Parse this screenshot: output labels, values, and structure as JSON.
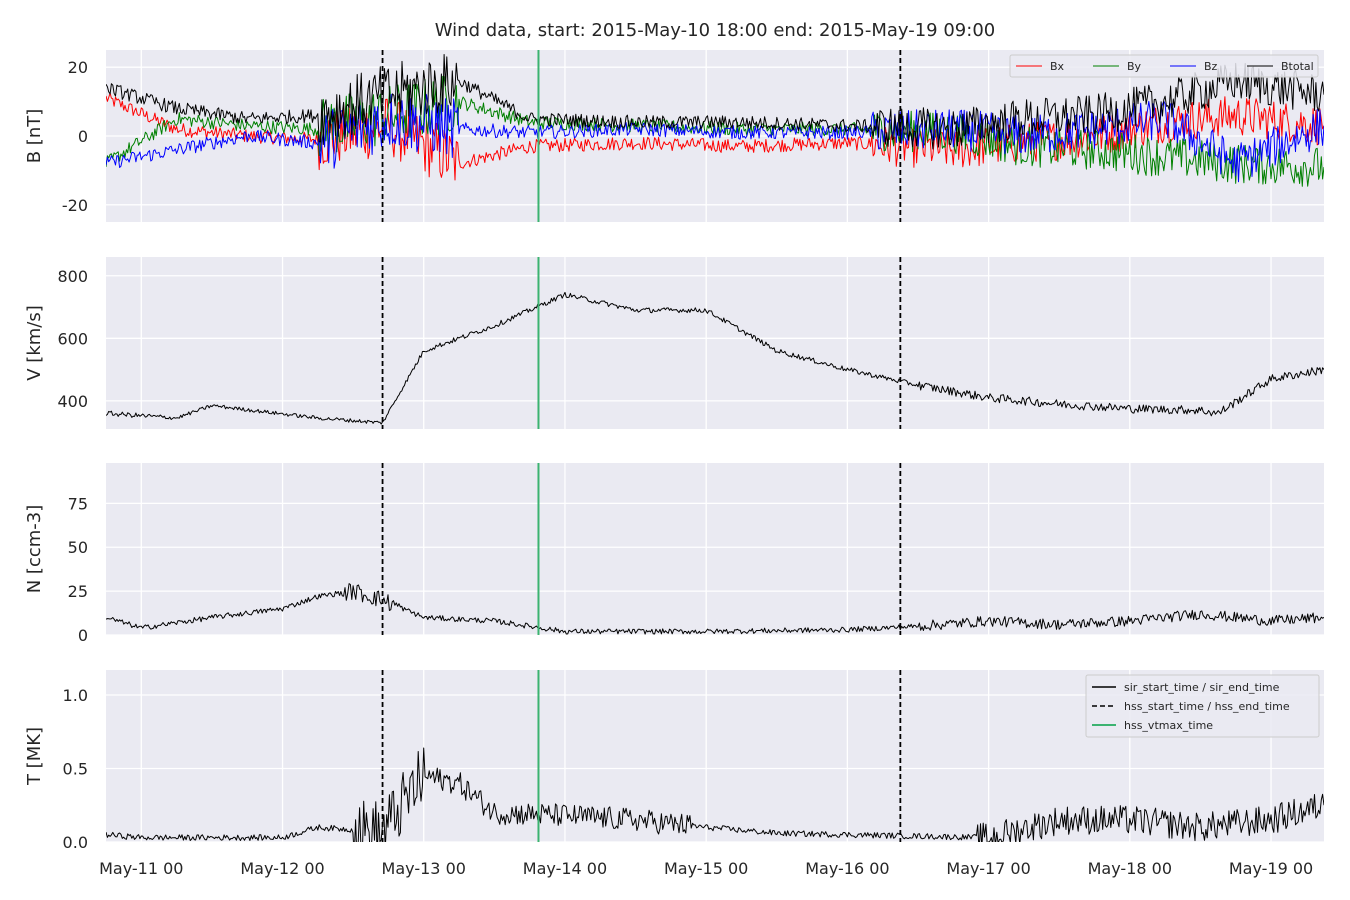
{
  "figure": {
    "title": "Wind data, start: 2015-May-10 18:00  end: 2015-May-19 09:00"
  },
  "chart_data": [
    {
      "type": "line",
      "panel": "B",
      "ylabel": "B [nT]",
      "ylim": [
        -25,
        25
      ],
      "yticks": [
        20,
        0,
        -20
      ],
      "legend": {
        "placement": "top-right",
        "columns": 4
      },
      "series": [
        {
          "name": "Bx",
          "color": "#ff0000",
          "x": [
            "2015-05-10 18:00",
            "2015-05-11 06:00",
            "2015-05-11 18:00",
            "2015-05-12 06:00",
            "2015-05-12 18:00",
            "2015-05-13 06:00",
            "2015-05-13 18:00",
            "2015-05-14 12:00",
            "2015-05-15 06:00",
            "2015-05-16 00:00",
            "2015-05-16 18:00",
            "2015-05-17 06:00",
            "2015-05-17 18:00",
            "2015-05-18 06:00",
            "2015-05-18 18:00",
            "2015-05-19 09:00"
          ],
          "y": [
            11,
            2,
            0,
            -1,
            3,
            -8,
            -3,
            -2,
            -3,
            -2,
            -4,
            -2,
            0,
            4,
            6,
            3
          ]
        },
        {
          "name": "By",
          "color": "#008000",
          "x": [
            "2015-05-10 18:00",
            "2015-05-11 06:00",
            "2015-05-11 18:00",
            "2015-05-12 06:00",
            "2015-05-12 18:00",
            "2015-05-13 06:00",
            "2015-05-13 18:00",
            "2015-05-14 12:00",
            "2015-05-15 06:00",
            "2015-05-16 00:00",
            "2015-05-16 18:00",
            "2015-05-17 06:00",
            "2015-05-17 18:00",
            "2015-05-18 06:00",
            "2015-05-18 18:00",
            "2015-05-19 09:00"
          ],
          "y": [
            -8,
            5,
            3,
            2,
            6,
            10,
            4,
            3,
            2,
            2,
            1,
            -3,
            -4,
            -6,
            -8,
            -9
          ]
        },
        {
          "name": "Bz",
          "color": "#0000ff",
          "x": [
            "2015-05-10 18:00",
            "2015-05-11 06:00",
            "2015-05-11 18:00",
            "2015-05-12 06:00",
            "2015-05-12 18:00",
            "2015-05-13 06:00",
            "2015-05-13 18:00",
            "2015-05-14 12:00",
            "2015-05-15 06:00",
            "2015-05-16 00:00",
            "2015-05-16 18:00",
            "2015-05-17 06:00",
            "2015-05-17 18:00",
            "2015-05-18 06:00",
            "2015-05-18 18:00",
            "2015-05-19 09:00"
          ],
          "y": [
            -8,
            -4,
            0,
            -2,
            5,
            2,
            1,
            2,
            1,
            1,
            2,
            0,
            2,
            5,
            -8,
            3
          ]
        },
        {
          "name": "Btotal",
          "color": "#000000",
          "x": [
            "2015-05-10 18:00",
            "2015-05-11 06:00",
            "2015-05-11 18:00",
            "2015-05-12 06:00",
            "2015-05-12 18:00",
            "2015-05-13 06:00",
            "2015-05-13 18:00",
            "2015-05-14 12:00",
            "2015-05-15 06:00",
            "2015-05-16 00:00",
            "2015-05-16 18:00",
            "2015-05-17 06:00",
            "2015-05-17 18:00",
            "2015-05-18 06:00",
            "2015-05-18 18:00",
            "2015-05-19 09:00"
          ],
          "y": [
            14,
            8,
            5,
            6,
            12,
            16,
            5,
            4,
            4,
            3,
            2,
            5,
            6,
            10,
            16,
            12
          ]
        }
      ],
      "events": [
        {
          "name": "hss_start_time",
          "x": "2015-05-12 17:00",
          "style": "dashed",
          "color": "#000000"
        },
        {
          "name": "hss_vtmax_time",
          "x": "2015-05-13 19:30",
          "style": "solid",
          "color": "#3cb371"
        },
        {
          "name": "hss_end_time",
          "x": "2015-05-16 09:00",
          "style": "dashed",
          "color": "#000000"
        }
      ]
    },
    {
      "type": "line",
      "panel": "V",
      "ylabel": "V [km/s]",
      "ylim": [
        310,
        860
      ],
      "yticks": [
        800,
        600,
        400
      ],
      "series": [
        {
          "color": "#000000",
          "x": [
            "2015-05-10 18:00",
            "2015-05-11 06:00",
            "2015-05-11 12:00",
            "2015-05-12 06:00",
            "2015-05-12 17:00",
            "2015-05-13 00:00",
            "2015-05-13 12:00",
            "2015-05-14 00:00",
            "2015-05-14 12:00",
            "2015-05-15 00:00",
            "2015-05-15 12:00",
            "2015-05-16 00:00",
            "2015-05-16 12:00",
            "2015-05-17 00:00",
            "2015-05-17 12:00",
            "2015-05-18 00:00",
            "2015-05-18 12:00",
            "2015-05-18 15:00",
            "2015-05-19 00:00",
            "2015-05-19 09:00"
          ],
          "y": [
            360,
            345,
            385,
            345,
            330,
            560,
            640,
            740,
            690,
            690,
            560,
            500,
            450,
            410,
            390,
            375,
            370,
            360,
            470,
            500
          ]
        }
      ],
      "events": [
        {
          "name": "hss_start_time",
          "x": "2015-05-12 17:00",
          "style": "dashed",
          "color": "#000000"
        },
        {
          "name": "hss_vtmax_time",
          "x": "2015-05-13 19:30",
          "style": "solid",
          "color": "#3cb371"
        },
        {
          "name": "hss_end_time",
          "x": "2015-05-16 09:00",
          "style": "dashed",
          "color": "#000000"
        }
      ]
    },
    {
      "type": "line",
      "panel": "N",
      "ylabel": "N [ccm-3]",
      "ylim": [
        0,
        98
      ],
      "yticks": [
        75,
        50,
        25,
        0
      ],
      "series": [
        {
          "color": "#000000",
          "x": [
            "2015-05-10 18:00",
            "2015-05-11 00:00",
            "2015-05-11 12:00",
            "2015-05-12 00:00",
            "2015-05-12 06:00",
            "2015-05-12 12:00",
            "2015-05-12 17:00",
            "2015-05-13 00:00",
            "2015-05-13 12:00",
            "2015-05-14 00:00",
            "2015-05-15 00:00",
            "2015-05-16 00:00",
            "2015-05-16 12:00",
            "2015-05-17 00:00",
            "2015-05-17 12:00",
            "2015-05-18 00:00",
            "2015-05-18 12:00",
            "2015-05-19 00:00",
            "2015-05-19 09:00"
          ],
          "y": [
            10,
            4,
            10,
            15,
            22,
            25,
            20,
            10,
            8,
            2,
            2,
            3,
            5,
            8,
            6,
            8,
            12,
            8,
            10
          ]
        }
      ],
      "events": [
        {
          "name": "hss_start_time",
          "x": "2015-05-12 17:00",
          "style": "dashed",
          "color": "#000000"
        },
        {
          "name": "hss_vtmax_time",
          "x": "2015-05-13 19:30",
          "style": "solid",
          "color": "#3cb371"
        },
        {
          "name": "hss_end_time",
          "x": "2015-05-16 09:00",
          "style": "dashed",
          "color": "#000000"
        }
      ]
    },
    {
      "type": "line",
      "panel": "T",
      "ylabel": "T [MK]",
      "ylim": [
        0,
        1.17
      ],
      "yticks": [
        "1.0",
        "0.5",
        "0.0"
      ],
      "legend": {
        "placement": "top-right",
        "entries": [
          {
            "label": "sir_start_time / sir_end_time",
            "style": "solid",
            "color": "#000000"
          },
          {
            "label": "hss_start_time / hss_end_time",
            "style": "dashed",
            "color": "#000000"
          },
          {
            "label": "hss_vtmax_time",
            "style": "solid",
            "color": "#3cb371"
          }
        ]
      },
      "series": [
        {
          "color": "#000000",
          "x": [
            "2015-05-10 18:00",
            "2015-05-11 00:00",
            "2015-05-12 00:00",
            "2015-05-12 06:00",
            "2015-05-12 17:00",
            "2015-05-13 00:00",
            "2015-05-13 06:00",
            "2015-05-13 12:00",
            "2015-05-14 00:00",
            "2015-05-14 12:00",
            "2015-05-15 00:00",
            "2015-05-15 12:00",
            "2015-05-16 00:00",
            "2015-05-16 12:00",
            "2015-05-17 00:00",
            "2015-05-17 12:00",
            "2015-05-18 00:00",
            "2015-05-18 12:00",
            "2015-05-19 00:00",
            "2015-05-19 09:00"
          ],
          "y": [
            0.05,
            0.03,
            0.03,
            0.1,
            0.07,
            0.45,
            0.4,
            0.2,
            0.18,
            0.15,
            0.1,
            0.06,
            0.05,
            0.04,
            0.03,
            0.15,
            0.15,
            0.1,
            0.15,
            0.25
          ]
        }
      ],
      "events": [
        {
          "name": "hss_start_time",
          "x": "2015-05-12 17:00",
          "style": "dashed",
          "color": "#000000"
        },
        {
          "name": "hss_vtmax_time",
          "x": "2015-05-13 19:30",
          "style": "solid",
          "color": "#3cb371"
        },
        {
          "name": "hss_end_time",
          "x": "2015-05-16 09:00",
          "style": "dashed",
          "color": "#000000"
        }
      ]
    }
  ],
  "xaxis": {
    "range": [
      "2015-05-10 18:00",
      "2015-05-19 09:00"
    ],
    "ticks": [
      {
        "at": "2015-05-11 00:00",
        "label": "May-11 00"
      },
      {
        "at": "2015-05-12 00:00",
        "label": "May-12 00"
      },
      {
        "at": "2015-05-13 00:00",
        "label": "May-13 00"
      },
      {
        "at": "2015-05-14 00:00",
        "label": "May-14 00"
      },
      {
        "at": "2015-05-15 00:00",
        "label": "May-15 00"
      },
      {
        "at": "2015-05-16 00:00",
        "label": "May-16 00"
      },
      {
        "at": "2015-05-17 00:00",
        "label": "May-17 00"
      },
      {
        "at": "2015-05-18 00:00",
        "label": "May-18 00"
      },
      {
        "at": "2015-05-19 00:00",
        "label": "May-19 00"
      }
    ]
  },
  "style": {
    "panel_bg": "#eaeaf2",
    "grid": "#ffffff",
    "text": "#262626",
    "grid_on": true
  }
}
